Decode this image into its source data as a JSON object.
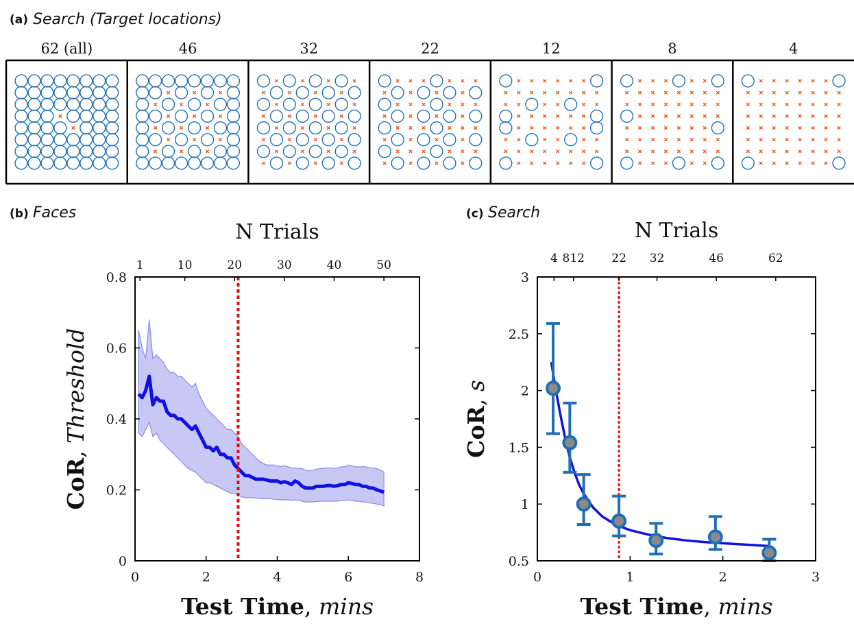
{
  "panel_a": {
    "letter": "(a)",
    "title": "Search (Target locations)",
    "grids": [
      {
        "label": "62 (all)",
        "count": 62
      },
      {
        "label": "46",
        "count": 46
      },
      {
        "label": "32",
        "count": 32
      },
      {
        "label": "22",
        "count": 22
      },
      {
        "label": "12",
        "count": 12
      },
      {
        "label": "8",
        "count": 8
      },
      {
        "label": "4",
        "count": 4
      }
    ],
    "colors": {
      "target": "#1f6fb4",
      "nontarget": "#e0561a"
    }
  },
  "chart_data": [
    {
      "type": "line",
      "letter": "(b)",
      "title": "Faces",
      "top_axis_title": "N Trials",
      "top_ticks": [
        {
          "t": 0.14,
          "label": "1"
        },
        {
          "t": 1.4,
          "label": "10"
        },
        {
          "t": 2.8,
          "label": "20"
        },
        {
          "t": 4.2,
          "label": "30"
        },
        {
          "t": 5.6,
          "label": "40"
        },
        {
          "t": 7.0,
          "label": "50"
        }
      ],
      "xlabel": {
        "bold": "Test Time",
        "italic": "mins"
      },
      "ylabel": {
        "bold": "CoR",
        "italic": "Threshold"
      },
      "xlim": [
        0,
        8
      ],
      "ylim": [
        0,
        0.8
      ],
      "xticks": [
        0,
        2,
        4,
        6,
        8
      ],
      "yticks": [
        0,
        0.2,
        0.4,
        0.6,
        0.8
      ],
      "vline": 2.9,
      "colors": {
        "line": "#1010e0",
        "band": "#c8c8f4",
        "band_edge": "#8a8ae8",
        "vline": "#e01010"
      },
      "series": [
        {
          "x": [
            0.1,
            0.2,
            0.3,
            0.4,
            0.5,
            0.6,
            0.7,
            0.8,
            0.9,
            1.0,
            1.1,
            1.2,
            1.3,
            1.4,
            1.5,
            1.6,
            1.7,
            1.8,
            1.9,
            2.0,
            2.1,
            2.2,
            2.3,
            2.4,
            2.5,
            2.6,
            2.7,
            2.8,
            2.9,
            3.0,
            3.1,
            3.2,
            3.3,
            3.4,
            3.5,
            3.6,
            3.7,
            3.8,
            3.9,
            4.0,
            4.1,
            4.2,
            4.3,
            4.4,
            4.5,
            4.6,
            4.7,
            4.8,
            4.9,
            5.0,
            5.1,
            5.2,
            5.3,
            5.4,
            5.5,
            5.6,
            5.7,
            5.8,
            5.9,
            6.0,
            6.1,
            6.2,
            6.3,
            6.4,
            6.5,
            6.6,
            6.7,
            6.8,
            6.9,
            7.0
          ],
          "y": [
            0.47,
            0.46,
            0.48,
            0.52,
            0.44,
            0.46,
            0.45,
            0.45,
            0.42,
            0.41,
            0.41,
            0.4,
            0.4,
            0.39,
            0.38,
            0.37,
            0.38,
            0.36,
            0.34,
            0.32,
            0.32,
            0.31,
            0.32,
            0.3,
            0.3,
            0.29,
            0.29,
            0.27,
            0.26,
            0.25,
            0.24,
            0.24,
            0.235,
            0.23,
            0.23,
            0.23,
            0.228,
            0.225,
            0.225,
            0.225,
            0.22,
            0.223,
            0.22,
            0.215,
            0.225,
            0.22,
            0.21,
            0.205,
            0.205,
            0.205,
            0.21,
            0.21,
            0.21,
            0.212,
            0.212,
            0.21,
            0.212,
            0.215,
            0.215,
            0.22,
            0.218,
            0.215,
            0.215,
            0.21,
            0.21,
            0.205,
            0.205,
            0.2,
            0.197,
            0.193
          ],
          "lower": [
            0.36,
            0.35,
            0.37,
            0.39,
            0.35,
            0.36,
            0.34,
            0.33,
            0.32,
            0.31,
            0.3,
            0.29,
            0.28,
            0.27,
            0.26,
            0.255,
            0.25,
            0.24,
            0.23,
            0.22,
            0.22,
            0.215,
            0.21,
            0.205,
            0.2,
            0.195,
            0.19,
            0.19,
            0.185,
            0.18,
            0.178,
            0.178,
            0.178,
            0.177,
            0.176,
            0.175,
            0.175,
            0.175,
            0.174,
            0.173,
            0.172,
            0.172,
            0.172,
            0.17,
            0.172,
            0.17,
            0.168,
            0.166,
            0.166,
            0.166,
            0.167,
            0.168,
            0.168,
            0.168,
            0.168,
            0.168,
            0.168,
            0.17,
            0.17,
            0.172,
            0.17,
            0.168,
            0.168,
            0.166,
            0.165,
            0.163,
            0.162,
            0.16,
            0.158,
            0.155
          ],
          "upper": [
            0.65,
            0.6,
            0.57,
            0.68,
            0.57,
            0.58,
            0.57,
            0.56,
            0.54,
            0.53,
            0.53,
            0.52,
            0.52,
            0.51,
            0.5,
            0.49,
            0.5,
            0.47,
            0.45,
            0.43,
            0.42,
            0.41,
            0.4,
            0.39,
            0.38,
            0.37,
            0.37,
            0.36,
            0.35,
            0.33,
            0.32,
            0.31,
            0.3,
            0.29,
            0.28,
            0.275,
            0.27,
            0.27,
            0.27,
            0.268,
            0.265,
            0.268,
            0.265,
            0.262,
            0.262,
            0.26,
            0.26,
            0.255,
            0.255,
            0.255,
            0.258,
            0.26,
            0.26,
            0.262,
            0.262,
            0.26,
            0.262,
            0.265,
            0.265,
            0.27,
            0.268,
            0.265,
            0.265,
            0.265,
            0.265,
            0.262,
            0.262,
            0.26,
            0.255,
            0.25
          ]
        }
      ]
    },
    {
      "type": "scatter",
      "letter": "(c)",
      "title": "Search",
      "top_axis_title": "N Trials",
      "top_ticks": [
        {
          "t": 0.18,
          "label": "4"
        },
        {
          "t": 0.39,
          "label": "812"
        },
        {
          "t": 0.88,
          "label": "22"
        },
        {
          "t": 1.29,
          "label": "32"
        },
        {
          "t": 1.93,
          "label": "46"
        },
        {
          "t": 2.57,
          "label": "62"
        }
      ],
      "xlabel": {
        "bold": "Test Time",
        "italic": "mins"
      },
      "ylabel": {
        "bold": "CoR",
        "italic": "s"
      },
      "xlim": [
        0,
        3
      ],
      "ylim": [
        0.5,
        3
      ],
      "xticks": [
        0,
        1,
        2,
        3
      ],
      "yticks": [
        0.5,
        1,
        1.5,
        2,
        2.5,
        3
      ],
      "ytick_labels": [
        "0.5",
        "1",
        "1.5",
        "2",
        "2.5",
        "3"
      ],
      "vline": 0.88,
      "colors": {
        "fit": "#1010e0",
        "marker_fill": "#8a8a8a",
        "marker_edge": "#1f6fb4",
        "errorbar": "#1f6fb4",
        "vline": "#e01010"
      },
      "points": [
        {
          "x": 0.17,
          "y": 2.02,
          "lo": 1.62,
          "hi": 2.59
        },
        {
          "x": 0.35,
          "y": 1.54,
          "lo": 1.28,
          "hi": 1.89
        },
        {
          "x": 0.5,
          "y": 1.0,
          "lo": 0.82,
          "hi": 1.26
        },
        {
          "x": 0.88,
          "y": 0.85,
          "lo": 0.72,
          "hi": 1.07
        },
        {
          "x": 1.28,
          "y": 0.68,
          "lo": 0.56,
          "hi": 0.83
        },
        {
          "x": 1.92,
          "y": 0.71,
          "lo": 0.6,
          "hi": 0.89
        },
        {
          "x": 2.5,
          "y": 0.57,
          "lo": 0.5,
          "hi": 0.69
        }
      ],
      "fit": {
        "x": [
          0.15,
          0.2,
          0.25,
          0.3,
          0.35,
          0.4,
          0.45,
          0.5,
          0.6,
          0.7,
          0.8,
          0.9,
          1.0,
          1.2,
          1.4,
          1.6,
          1.8,
          2.0,
          2.2,
          2.5
        ],
        "y": [
          2.25,
          2.0,
          1.78,
          1.58,
          1.41,
          1.28,
          1.17,
          1.09,
          0.97,
          0.89,
          0.84,
          0.8,
          0.77,
          0.73,
          0.7,
          0.68,
          0.665,
          0.655,
          0.645,
          0.63
        ]
      }
    }
  ]
}
